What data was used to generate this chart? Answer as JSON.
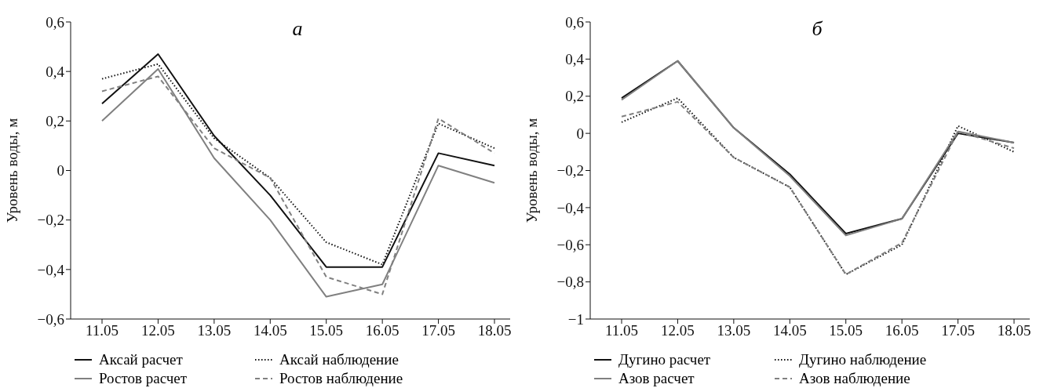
{
  "chart_data": [
    {
      "type": "line",
      "title": "а",
      "ylabel": "Уровень воды, м",
      "categories": [
        "11.05",
        "12.05",
        "13.05",
        "14.05",
        "15.05",
        "16.05",
        "17.05",
        "18.05"
      ],
      "ylim": [
        -0.6,
        0.6
      ],
      "yticks": [
        {
          "value": -0.6,
          "label": "−0,6"
        },
        {
          "value": -0.4,
          "label": "−0,4"
        },
        {
          "value": -0.2,
          "label": "−0,2"
        },
        {
          "value": 0,
          "label": "0"
        },
        {
          "value": 0.2,
          "label": "0,2"
        },
        {
          "value": 0.4,
          "label": "0,4"
        },
        {
          "value": 0.6,
          "label": "0,6"
        }
      ],
      "grid": false,
      "legend": "bottom",
      "marker": "none",
      "series": [
        {
          "name": "Аксай расчет",
          "color": "#111111",
          "line_style": "solid",
          "values": [
            0.27,
            0.47,
            0.14,
            -0.1,
            -0.39,
            -0.39,
            0.07,
            0.02
          ]
        },
        {
          "name": "Аксай наблюдение",
          "color": "#111111",
          "line_style": "dotted",
          "values": [
            0.37,
            0.43,
            0.13,
            -0.03,
            -0.29,
            -0.38,
            0.19,
            0.09
          ]
        },
        {
          "name": "Ростов расчет",
          "color": "#808080",
          "line_style": "solid",
          "values": [
            0.2,
            0.41,
            0.05,
            -0.2,
            -0.51,
            -0.46,
            0.02,
            -0.05
          ]
        },
        {
          "name": "Ростов наблюдение",
          "color": "#808080",
          "line_style": "dashed",
          "values": [
            0.32,
            0.38,
            0.09,
            -0.03,
            -0.43,
            -0.5,
            0.21,
            0.07
          ]
        }
      ]
    },
    {
      "type": "line",
      "title": "б",
      "ylabel": "Уровень воды, м",
      "categories": [
        "11.05",
        "12.05",
        "13.05",
        "14.05",
        "15.05",
        "16.05",
        "17.05",
        "18.05"
      ],
      "ylim": [
        -1,
        0.6
      ],
      "yticks": [
        {
          "value": -1,
          "label": "−1"
        },
        {
          "value": -0.8,
          "label": "−0,8"
        },
        {
          "value": -0.6,
          "label": "−0,6"
        },
        {
          "value": -0.4,
          "label": "−0,4"
        },
        {
          "value": -0.2,
          "label": "−0,2"
        },
        {
          "value": 0,
          "label": "0"
        },
        {
          "value": 0.2,
          "label": "0,2"
        },
        {
          "value": 0.4,
          "label": "0,4"
        },
        {
          "value": 0.6,
          "label": "0,6"
        }
      ],
      "grid": false,
      "legend": "bottom",
      "marker": "none",
      "series": [
        {
          "name": "Дугино расчет",
          "color": "#111111",
          "line_style": "solid",
          "values": [
            0.19,
            0.39,
            0.03,
            -0.22,
            -0.54,
            -0.46,
            0.0,
            -0.05
          ]
        },
        {
          "name": "Дугино наблюдение",
          "color": "#111111",
          "line_style": "dotted",
          "values": [
            0.06,
            0.19,
            -0.13,
            -0.29,
            -0.76,
            -0.6,
            0.04,
            -0.1
          ]
        },
        {
          "name": "Азов расчет",
          "color": "#808080",
          "line_style": "solid",
          "values": [
            0.18,
            0.39,
            0.03,
            -0.23,
            -0.55,
            -0.46,
            0.01,
            -0.05
          ]
        },
        {
          "name": "Азов наблюдение",
          "color": "#808080",
          "line_style": "dashed",
          "values": [
            0.09,
            0.17,
            -0.13,
            -0.29,
            -0.76,
            -0.59,
            0.01,
            -0.08
          ]
        }
      ]
    }
  ]
}
